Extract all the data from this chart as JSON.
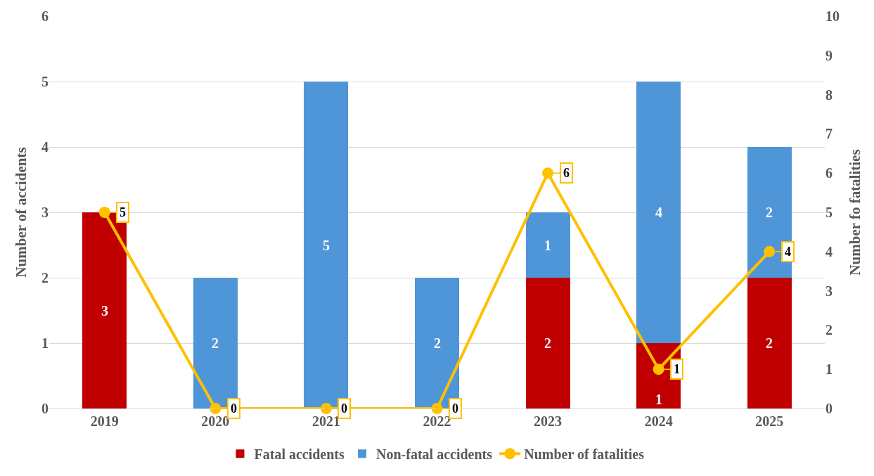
{
  "chart_data": {
    "type": "bar",
    "stacked": true,
    "categories": [
      "2019",
      "2020",
      "2021",
      "2022",
      "2023",
      "2024",
      "2025"
    ],
    "ylabel": "Number of accidents",
    "y2label": "Number fo fatalities",
    "ylim": [
      0,
      6
    ],
    "yticks": [
      0,
      1,
      2,
      3,
      4,
      5,
      6
    ],
    "y2lim": [
      0,
      10
    ],
    "y2ticks": [
      0,
      1,
      2,
      3,
      4,
      5,
      6,
      7,
      8,
      9,
      10
    ],
    "grid": "y",
    "legend": "bottom",
    "series": [
      {
        "name": "Fatal accidents",
        "color": "#c00000",
        "values": [
          3,
          0,
          0,
          0,
          2,
          1,
          2
        ],
        "value_labels": [
          "3",
          null,
          null,
          null,
          "2",
          "1",
          "2"
        ]
      },
      {
        "name": "Non-fatal accidents",
        "color": "#4f96d8",
        "values": [
          0,
          2,
          5,
          2,
          1,
          4,
          2
        ],
        "value_labels": [
          null,
          "2",
          "5",
          "2",
          "1",
          "4",
          "2"
        ]
      },
      {
        "name": "Number of fatalities",
        "type": "line",
        "axis": "y2",
        "color": "#ffc000",
        "marker": "circle",
        "line_style": "solid",
        "values": [
          5,
          0,
          0,
          0,
          6,
          1,
          4
        ],
        "value_labels": [
          "5",
          "0",
          "0",
          "0",
          "6",
          "1",
          "4"
        ]
      }
    ]
  }
}
